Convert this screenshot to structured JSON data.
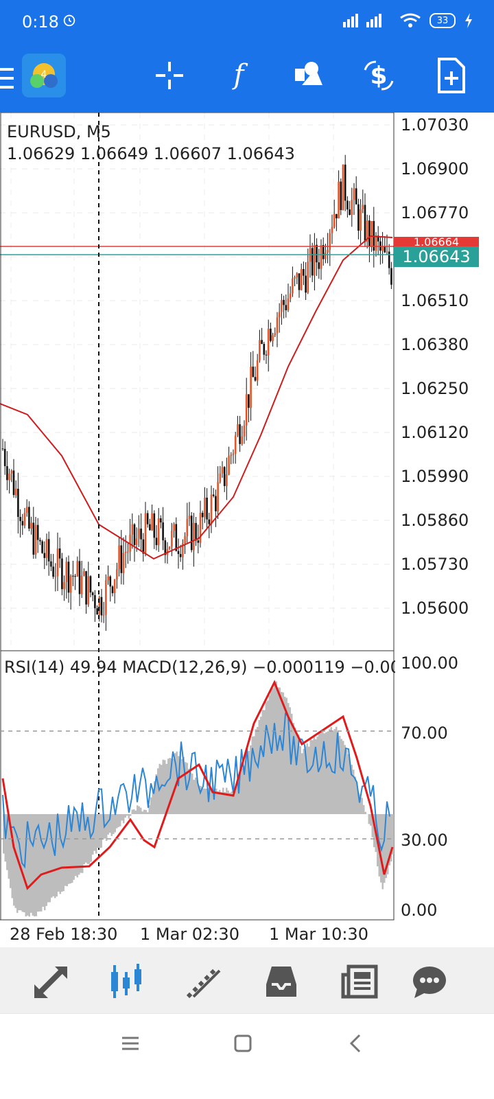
{
  "status_bar": {
    "time": "0:18",
    "battery": "33"
  },
  "toolbar": {
    "icons": [
      "menu-icon",
      "metatrader-logo",
      "crosshair-icon",
      "function-icon",
      "objects-icon",
      "trade-icon",
      "new-order-icon"
    ]
  },
  "chart": {
    "symbol_tf": "EURUSD, M5",
    "ohlc": "1.06629 1.06649 1.06607 1.06643",
    "price_labels": [
      "1.07030",
      "1.06900",
      "1.06770",
      "1.06510",
      "1.06380",
      "1.06250",
      "1.06120",
      "1.05990",
      "1.05860",
      "1.05730",
      "1.05600"
    ],
    "ask_label": "1.06664",
    "bid_label": "1.06643",
    "indicator_header": "RSI(14) 49.94 MACD(12,26,9) −0.000119 −0.00",
    "rsi_levels": [
      "100.00",
      "70.00",
      "30.00",
      "0.00"
    ],
    "x_labels": [
      "28 Feb 18:30",
      "1 Mar 02:30",
      "1 Mar 10:30"
    ],
    "colors": {
      "toolbar": "#1a73e8",
      "bull": "#e0552a",
      "bear": "#111111",
      "ma": "#d01c1c",
      "rsi": "#2b86d6",
      "macd_signal": "#e01b1b",
      "hist": "#bdbdbd",
      "bid": "#2aa198",
      "ask": "#e53935"
    }
  },
  "chart_data": {
    "type": "line",
    "series": [
      {
        "x": [
          0,
          6,
          12,
          18,
          24,
          30,
          36,
          42,
          48,
          54,
          60,
          66,
          72,
          78,
          84,
          90,
          96
        ],
        "values": [
          1.0612,
          1.0589,
          1.0578,
          1.0575,
          1.0567,
          1.0582,
          1.0588,
          1.0585,
          1.0588,
          1.0601,
          1.0625,
          1.0648,
          1.0659,
          1.0668,
          1.0689,
          1.0675,
          1.0664
        ]
      }
    ],
    "ylim": [
      1.0553,
      1.071
    ]
  },
  "bottom_nav": {
    "icons": [
      "quotes-icon",
      "chart-icon",
      "trade-icon",
      "history-icon",
      "news-icon",
      "messages-icon"
    ]
  },
  "system_nav": {
    "icons": [
      "recent-apps-icon",
      "home-icon",
      "back-icon"
    ]
  }
}
